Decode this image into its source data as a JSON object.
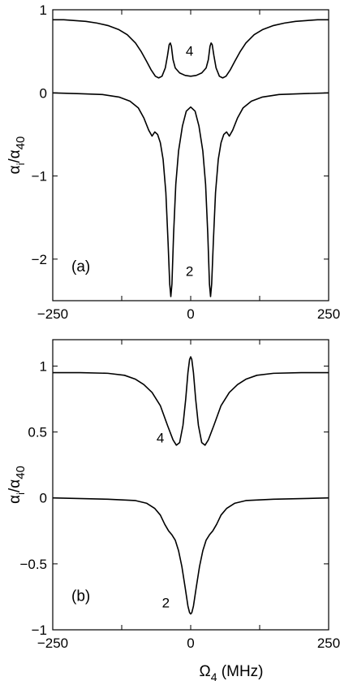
{
  "chart_data": [
    {
      "type": "line",
      "panel_label": "(a)",
      "xlim": [
        -250,
        250
      ],
      "ylim": [
        -2.5,
        1
      ],
      "xticks": [
        -250,
        0,
        250
      ],
      "xtick_labels": [
        "−250",
        "0",
        "250"
      ],
      "yticks": [
        -2,
        -1,
        0,
        1
      ],
      "ytick_labels": [
        "−2",
        "−1",
        "0",
        "1"
      ],
      "ylabel": {
        "main": "α",
        "sub1": "i",
        "mid": "/α",
        "sub2": "40"
      },
      "xlabel": null,
      "grid": false,
      "series": [
        {
          "label": "4",
          "label_pos": {
            "x": -2,
            "y": 0.45
          },
          "points": [
            [
              -250,
              0.88
            ],
            [
              -230,
              0.88
            ],
            [
              -210,
              0.87
            ],
            [
              -190,
              0.86
            ],
            [
              -170,
              0.84
            ],
            [
              -150,
              0.81
            ],
            [
              -130,
              0.76
            ],
            [
              -115,
              0.7
            ],
            [
              -100,
              0.6
            ],
            [
              -90,
              0.5
            ],
            [
              -80,
              0.38
            ],
            [
              -72,
              0.28
            ],
            [
              -64,
              0.2
            ],
            [
              -58,
              0.18
            ],
            [
              -52,
              0.2
            ],
            [
              -46,
              0.3
            ],
            [
              -42,
              0.45
            ],
            [
              -39,
              0.58
            ],
            [
              -37,
              0.6
            ],
            [
              -35,
              0.56
            ],
            [
              -32,
              0.4
            ],
            [
              -28,
              0.3
            ],
            [
              -20,
              0.24
            ],
            [
              -10,
              0.21
            ],
            [
              0,
              0.2
            ],
            [
              10,
              0.21
            ],
            [
              20,
              0.24
            ],
            [
              28,
              0.3
            ],
            [
              32,
              0.4
            ],
            [
              35,
              0.56
            ],
            [
              37,
              0.6
            ],
            [
              39,
              0.58
            ],
            [
              42,
              0.45
            ],
            [
              46,
              0.3
            ],
            [
              52,
              0.2
            ],
            [
              58,
              0.18
            ],
            [
              64,
              0.2
            ],
            [
              72,
              0.28
            ],
            [
              80,
              0.38
            ],
            [
              90,
              0.5
            ],
            [
              100,
              0.6
            ],
            [
              115,
              0.7
            ],
            [
              130,
              0.76
            ],
            [
              150,
              0.81
            ],
            [
              170,
              0.84
            ],
            [
              190,
              0.86
            ],
            [
              210,
              0.87
            ],
            [
              230,
              0.88
            ],
            [
              250,
              0.88
            ]
          ]
        },
        {
          "label": "2",
          "label_pos": {
            "x": -2,
            "y": -2.2
          },
          "points": [
            [
              -250,
              0
            ],
            [
              -200,
              -0.01
            ],
            [
              -160,
              -0.02
            ],
            [
              -130,
              -0.05
            ],
            [
              -110,
              -0.1
            ],
            [
              -95,
              -0.18
            ],
            [
              -85,
              -0.3
            ],
            [
              -76,
              -0.45
            ],
            [
              -70,
              -0.52
            ],
            [
              -65,
              -0.47
            ],
            [
              -60,
              -0.5
            ],
            [
              -55,
              -0.6
            ],
            [
              -50,
              -0.8
            ],
            [
              -45,
              -1.2
            ],
            [
              -41,
              -1.8
            ],
            [
              -38,
              -2.3
            ],
            [
              -36,
              -2.45
            ],
            [
              -34,
              -2.3
            ],
            [
              -31,
              -1.7
            ],
            [
              -27,
              -1.1
            ],
            [
              -22,
              -0.7
            ],
            [
              -15,
              -0.4
            ],
            [
              -8,
              -0.22
            ],
            [
              0,
              -0.17
            ],
            [
              8,
              -0.22
            ],
            [
              15,
              -0.4
            ],
            [
              22,
              -0.7
            ],
            [
              27,
              -1.1
            ],
            [
              31,
              -1.7
            ],
            [
              34,
              -2.3
            ],
            [
              36,
              -2.45
            ],
            [
              38,
              -2.3
            ],
            [
              41,
              -1.8
            ],
            [
              45,
              -1.2
            ],
            [
              50,
              -0.8
            ],
            [
              55,
              -0.6
            ],
            [
              60,
              -0.5
            ],
            [
              65,
              -0.47
            ],
            [
              70,
              -0.52
            ],
            [
              76,
              -0.45
            ],
            [
              85,
              -0.3
            ],
            [
              95,
              -0.18
            ],
            [
              110,
              -0.1
            ],
            [
              130,
              -0.05
            ],
            [
              160,
              -0.02
            ],
            [
              200,
              -0.01
            ],
            [
              250,
              0
            ]
          ]
        }
      ]
    },
    {
      "type": "line",
      "panel_label": "(b)",
      "xlim": [
        -250,
        250
      ],
      "ylim": [
        -1,
        1.2
      ],
      "xticks": [
        -250,
        0,
        250
      ],
      "xtick_labels": [
        "−250",
        "0",
        "250"
      ],
      "yticks": [
        -1,
        -0.5,
        0,
        0.5,
        1
      ],
      "ytick_labels": [
        "−1",
        "−0.5",
        "0",
        "0.5",
        "1"
      ],
      "ylabel": {
        "main": "α",
        "sub1": "i",
        "mid": "/α",
        "sub2": "40"
      },
      "xlabel": {
        "main": "Ω",
        "sub": "4",
        "rest": " (MHz)"
      },
      "grid": false,
      "series": [
        {
          "label": "4",
          "label_pos": {
            "x": -55,
            "y": 0.42
          },
          "points": [
            [
              -250,
              0.95
            ],
            [
              -200,
              0.95
            ],
            [
              -150,
              0.945
            ],
            [
              -120,
              0.93
            ],
            [
              -100,
              0.9
            ],
            [
              -85,
              0.86
            ],
            [
              -70,
              0.8
            ],
            [
              -55,
              0.7
            ],
            [
              -42,
              0.55
            ],
            [
              -32,
              0.44
            ],
            [
              -26,
              0.4
            ],
            [
              -20,
              0.42
            ],
            [
              -14,
              0.55
            ],
            [
              -9,
              0.75
            ],
            [
              -5,
              0.95
            ],
            [
              -2,
              1.05
            ],
            [
              0,
              1.07
            ],
            [
              2,
              1.05
            ],
            [
              5,
              0.95
            ],
            [
              9,
              0.75
            ],
            [
              14,
              0.55
            ],
            [
              20,
              0.42
            ],
            [
              26,
              0.4
            ],
            [
              32,
              0.44
            ],
            [
              42,
              0.55
            ],
            [
              55,
              0.7
            ],
            [
              70,
              0.8
            ],
            [
              85,
              0.86
            ],
            [
              100,
              0.9
            ],
            [
              120,
              0.93
            ],
            [
              150,
              0.945
            ],
            [
              200,
              0.95
            ],
            [
              250,
              0.95
            ]
          ]
        },
        {
          "label": "2",
          "label_pos": {
            "x": -45,
            "y": -0.83
          },
          "points": [
            [
              -250,
              0
            ],
            [
              -150,
              -0.01
            ],
            [
              -100,
              -0.02
            ],
            [
              -80,
              -0.04
            ],
            [
              -65,
              -0.08
            ],
            [
              -55,
              -0.13
            ],
            [
              -47,
              -0.2
            ],
            [
              -40,
              -0.25
            ],
            [
              -34,
              -0.28
            ],
            [
              -28,
              -0.32
            ],
            [
              -22,
              -0.4
            ],
            [
              -16,
              -0.52
            ],
            [
              -10,
              -0.68
            ],
            [
              -5,
              -0.82
            ],
            [
              -2,
              -0.87
            ],
            [
              0,
              -0.88
            ],
            [
              2,
              -0.87
            ],
            [
              5,
              -0.82
            ],
            [
              10,
              -0.68
            ],
            [
              16,
              -0.52
            ],
            [
              22,
              -0.4
            ],
            [
              28,
              -0.32
            ],
            [
              34,
              -0.28
            ],
            [
              40,
              -0.25
            ],
            [
              47,
              -0.2
            ],
            [
              55,
              -0.13
            ],
            [
              65,
              -0.08
            ],
            [
              80,
              -0.04
            ],
            [
              100,
              -0.02
            ],
            [
              150,
              -0.01
            ],
            [
              250,
              0
            ]
          ]
        }
      ]
    }
  ]
}
